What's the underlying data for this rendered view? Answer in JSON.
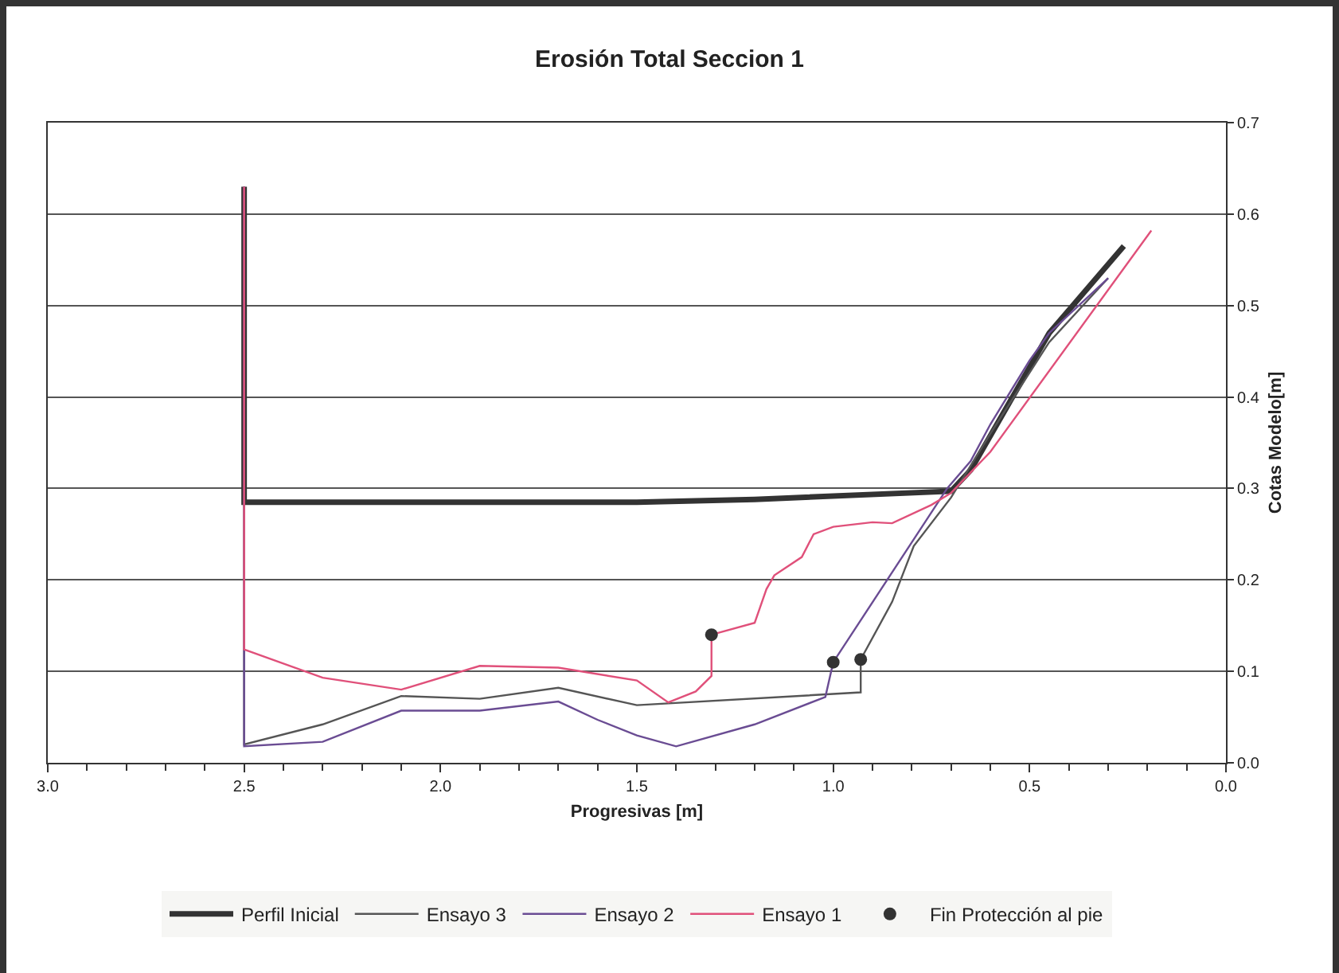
{
  "chart_data": {
    "type": "line",
    "title": "Erosión Total Seccion 1",
    "xlabel": "Progresivas [m]",
    "ylabel": "Cotas Modelo[m]",
    "xlim": [
      3,
      0
    ],
    "xticks": [
      {
        "value": 3,
        "label": "3.0"
      },
      {
        "value": 2.5,
        "label": "2.5"
      },
      {
        "value": 2,
        "label": "2.0"
      },
      {
        "value": 1.5,
        "label": "1.5"
      },
      {
        "value": 1,
        "label": "1.0"
      },
      {
        "value": 0.5,
        "label": "0.5"
      },
      {
        "value": 0,
        "label": "0.0"
      }
    ],
    "ylim": [
      0,
      0.7
    ],
    "yticks": [
      {
        "value": 0,
        "label": "0.0"
      },
      0.1,
      0.2,
      0.3,
      0.4,
      0.5,
      0.6,
      0.7
    ],
    "grid": "y",
    "legend": "bottom",
    "marker": "none",
    "line_style": "solid",
    "series": [
      {
        "name": "Perfil Inicial",
        "color": "#333333",
        "x": [
          2.5,
          2.5,
          1.5,
          1.2,
          0.7,
          0.65,
          0.45,
          0.26
        ],
        "values": [
          0.63,
          0.285,
          0.285,
          0.288,
          0.297,
          0.32,
          0.47,
          0.565
        ]
      },
      {
        "name": "Ensayo 3",
        "color": "#555555",
        "x": [
          2.5,
          2.5,
          2.3,
          2.1,
          1.9,
          1.7,
          1.5,
          0.93,
          0.93,
          0.85,
          0.795,
          0.7,
          0.6,
          0.45,
          0.3
        ],
        "values": [
          0.63,
          0.02,
          0.042,
          0.073,
          0.07,
          0.082,
          0.063,
          0.077,
          0.113,
          0.176,
          0.237,
          0.29,
          0.36,
          0.46,
          0.53
        ]
      },
      {
        "name": "Ensayo 2",
        "color": "#6a4c93",
        "x": [
          2.5,
          2.5,
          2.3,
          2.1,
          1.9,
          1.7,
          1.6,
          1.5,
          1.4,
          1.2,
          1.02,
          1.0,
          0.71,
          0.65,
          0.6,
          0.5,
          0.45,
          0.3
        ],
        "values": [
          0.63,
          0.018,
          0.023,
          0.057,
          0.057,
          0.067,
          0.047,
          0.03,
          0.018,
          0.042,
          0.072,
          0.11,
          0.3,
          0.33,
          0.37,
          0.44,
          0.47,
          0.53
        ]
      },
      {
        "name": "Ensayo 1",
        "color": "#e0507a",
        "x": [
          2.5,
          2.5,
          2.3,
          2.1,
          1.9,
          1.7,
          1.5,
          1.42,
          1.35,
          1.31,
          1.31,
          1.2,
          1.17,
          1.15,
          1.08,
          1.05,
          1.0,
          0.9,
          0.85,
          0.75,
          0.7,
          0.6,
          0.19
        ],
        "values": [
          0.63,
          0.124,
          0.093,
          0.08,
          0.106,
          0.104,
          0.09,
          0.066,
          0.078,
          0.095,
          0.14,
          0.153,
          0.19,
          0.205,
          0.225,
          0.25,
          0.258,
          0.263,
          0.262,
          0.282,
          0.295,
          0.34,
          0.582
        ]
      },
      {
        "name": "Fin Protección al pie",
        "type": "scatter",
        "marker": "circle",
        "color": "#333333",
        "x": [
          1.31,
          1.0,
          0.93
        ],
        "values": [
          0.14,
          0.11,
          0.113
        ]
      }
    ]
  }
}
